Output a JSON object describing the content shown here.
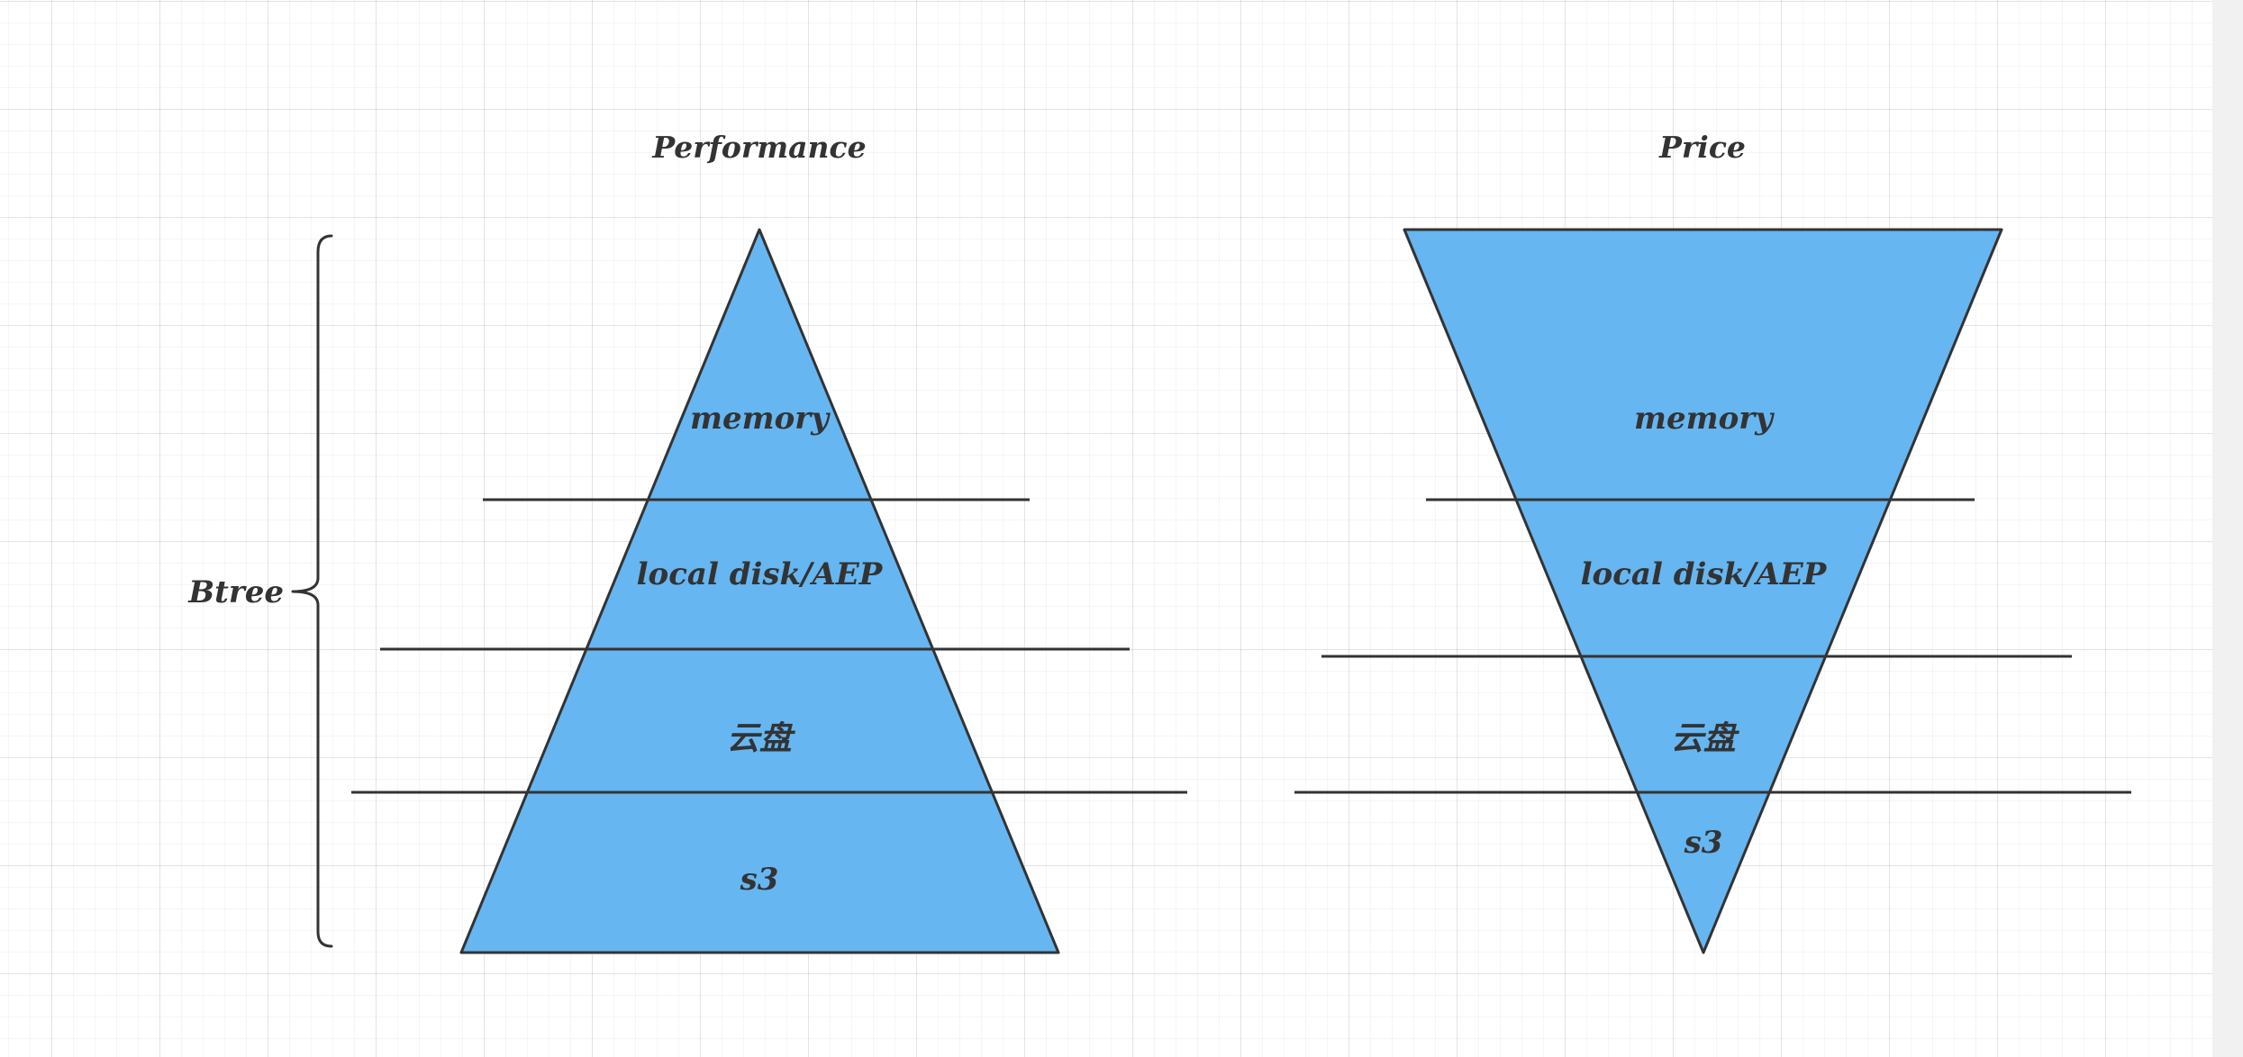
{
  "performance": {
    "title": "Performance",
    "layers": [
      "memory",
      "local disk/AEP",
      "云盘",
      "s3"
    ]
  },
  "price": {
    "title": "Price",
    "layers": [
      "memory",
      "local disk/AEP",
      "云盘",
      "s3"
    ]
  },
  "brace": {
    "label": "Btree"
  },
  "colors": {
    "fill": "#66b6f1",
    "stroke": "#333333",
    "text": "#333333"
  }
}
